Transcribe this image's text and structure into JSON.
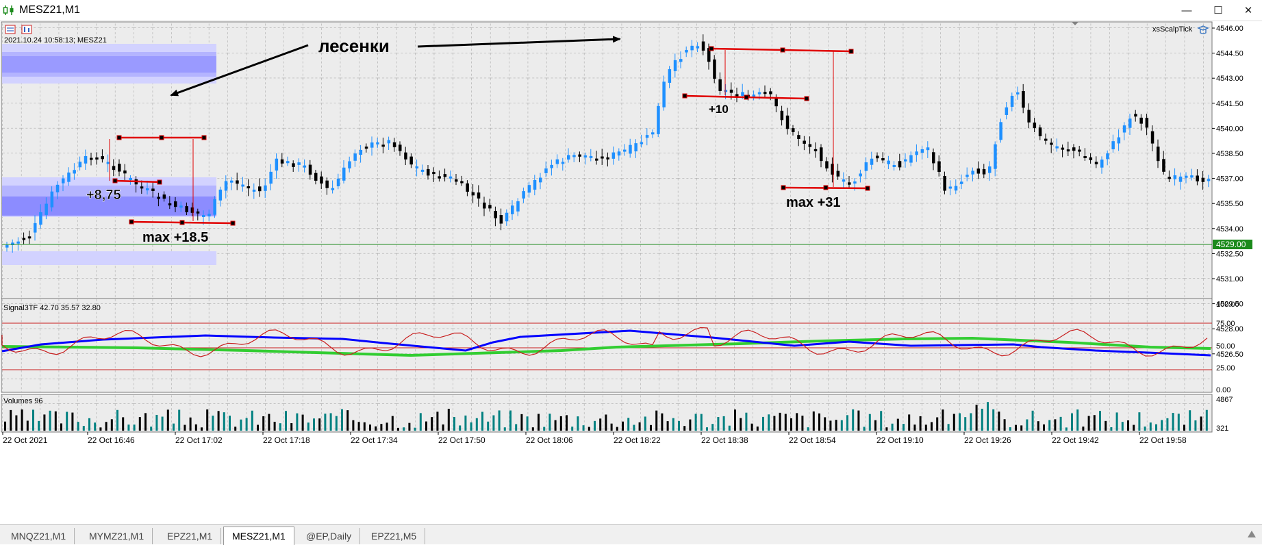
{
  "window": {
    "title": "MESZ21,M1",
    "minimize_glyph": "—",
    "maximize_glyph": "☐",
    "close_glyph": "✕"
  },
  "chart": {
    "info_line": "2021.10.24 10:58:13; MESZ21",
    "indicator_name": "xsScalpTick",
    "annotation_ladders": "лесенки",
    "annotations": [
      "+8,75",
      "max +18.5",
      "+10",
      "max +31"
    ],
    "price_ticks": [
      "4546.00",
      "4544.50",
      "4543.00",
      "4541.50",
      "4540.00",
      "4538.50",
      "4537.00",
      "4535.50",
      "4534.00",
      "4532.50",
      "4531.00",
      "4529.50",
      "4528.00",
      "4526.50"
    ],
    "current_price": "4529.00",
    "signal_label": "Signal3TF 42.70 35.57 32.80",
    "signal_ticks": [
      "100.00",
      "75.00",
      "50.00",
      "25.00",
      "0.00"
    ],
    "volume_label": "Volumes 96",
    "volume_ticks": [
      "4867",
      "321"
    ],
    "time_labels": [
      "22 Oct 2021",
      "22 Oct 16:46",
      "22 Oct 17:02",
      "22 Oct 17:18",
      "22 Oct 17:34",
      "22 Oct 17:50",
      "22 Oct 18:06",
      "22 Oct 18:22",
      "22 Oct 18:38",
      "22 Oct 18:54",
      "22 Oct 19:10",
      "22 Oct 19:26",
      "22 Oct 19:42",
      "22 Oct 19:58"
    ],
    "colors": {
      "bull": "#1e90ff",
      "bear": "#000000",
      "signal_red": "#c81e1e",
      "signal_blue": "#0000ff",
      "signal_green": "#32cd32",
      "volume_teal": "#008080",
      "current_price_bg": "#1b8a1b",
      "zone_light": "#d2d2ff",
      "zone_mid": "#b4b4ff",
      "zone_dark": "#8c8cff"
    }
  },
  "tabs": [
    {
      "label": "MNQZ21,M1",
      "active": false
    },
    {
      "label": "MYMZ21,M1",
      "active": false
    },
    {
      "label": "EPZ21,M1",
      "active": false
    },
    {
      "label": "MESZ21,M1",
      "active": true
    },
    {
      "label": "@EP,Daily",
      "active": false
    },
    {
      "label": "EPZ21,M5",
      "active": false
    }
  ]
}
